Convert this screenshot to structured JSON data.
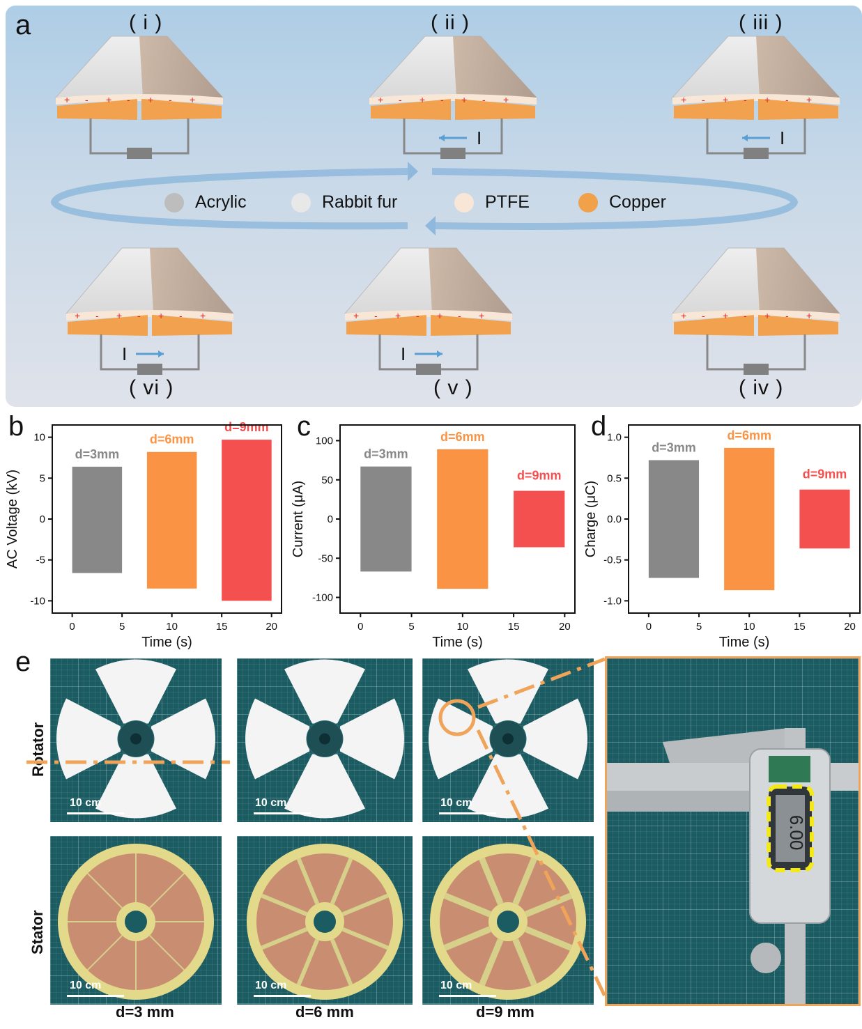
{
  "panels": {
    "a": "a",
    "b": "b",
    "c": "c",
    "d": "d",
    "e": "e"
  },
  "steps": {
    "i": "( i )",
    "ii": "( ii )",
    "iii": "( iii )",
    "iv": "( iv )",
    "v": "( v )",
    "vi": "( vi )"
  },
  "current_label": "I",
  "legend": [
    {
      "label": "Acrylic",
      "color": "#bdbdbd"
    },
    {
      "label": "Rabbit fur",
      "color": "#e8e8e8"
    },
    {
      "label": "PTFE",
      "color": "#f8e6d6"
    },
    {
      "label": "Copper",
      "color": "#f0a14a"
    }
  ],
  "colors": {
    "gray": "#888888",
    "orange": "#fa9444",
    "red": "#f55050",
    "arrow": "#5a9fd4",
    "dash": "#f0a45a",
    "copper": "#f2a24e"
  },
  "chart_data": [
    {
      "type": "bar",
      "panel": "b",
      "xlabel": "Time (s)",
      "ylabel": "AC Voltage (kV)",
      "xlim": [
        -2,
        21
      ],
      "ylim": [
        -11.5,
        11.5
      ],
      "xticks": [
        "0",
        "5",
        "10",
        "15",
        "20"
      ],
      "yticks": [
        "-10",
        "-5",
        "0",
        "5",
        "10"
      ],
      "series": [
        {
          "name": "d=3mm",
          "x": [
            0,
            5
          ],
          "max": 6.4,
          "min": -6.6
        },
        {
          "name": "d=6mm",
          "x": [
            7.5,
            12.5
          ],
          "max": 8.2,
          "min": -8.5
        },
        {
          "name": "d=9mm",
          "x": [
            15,
            20
          ],
          "max": 9.7,
          "min": -10.0
        }
      ]
    },
    {
      "type": "bar",
      "panel": "c",
      "xlabel": "Time (s)",
      "ylabel": "Current (μA)",
      "xlim": [
        -2,
        21
      ],
      "ylim": [
        -120,
        120
      ],
      "xticks": [
        "0",
        "5",
        "10",
        "15",
        "20"
      ],
      "yticks": [
        "-100",
        "-50",
        "0",
        "50",
        "100"
      ],
      "series": [
        {
          "name": "d=3mm",
          "x": [
            0,
            5
          ],
          "max": 67,
          "min": -67
        },
        {
          "name": "d=6mm",
          "x": [
            7.5,
            12.5
          ],
          "max": 89,
          "min": -89
        },
        {
          "name": "d=9mm",
          "x": [
            15,
            20
          ],
          "max": 36,
          "min": -36
        }
      ]
    },
    {
      "type": "bar",
      "panel": "d",
      "xlabel": "Time (s)",
      "ylabel": "Charge (μC)",
      "xlim": [
        -2,
        21
      ],
      "ylim": [
        -1.15,
        1.15
      ],
      "xticks": [
        "0",
        "5",
        "10",
        "15",
        "20"
      ],
      "yticks": [
        "-1.0",
        "-0.5",
        "0.0",
        "0.5",
        "1.0"
      ],
      "series": [
        {
          "name": "d=3mm",
          "x": [
            0,
            5
          ],
          "max": 0.72,
          "min": -0.72
        },
        {
          "name": "d=6mm",
          "x": [
            7.5,
            12.5
          ],
          "max": 0.87,
          "min": -0.87
        },
        {
          "name": "d=9mm",
          "x": [
            15,
            20
          ],
          "max": 0.36,
          "min": -0.36
        }
      ]
    }
  ],
  "panel_e": {
    "row_labels": {
      "rotator": "Rotator",
      "stator": "Stator"
    },
    "scale_bar": "10 cm",
    "columns": [
      "d=3 mm",
      "d=6 mm",
      "d=9 mm"
    ]
  }
}
